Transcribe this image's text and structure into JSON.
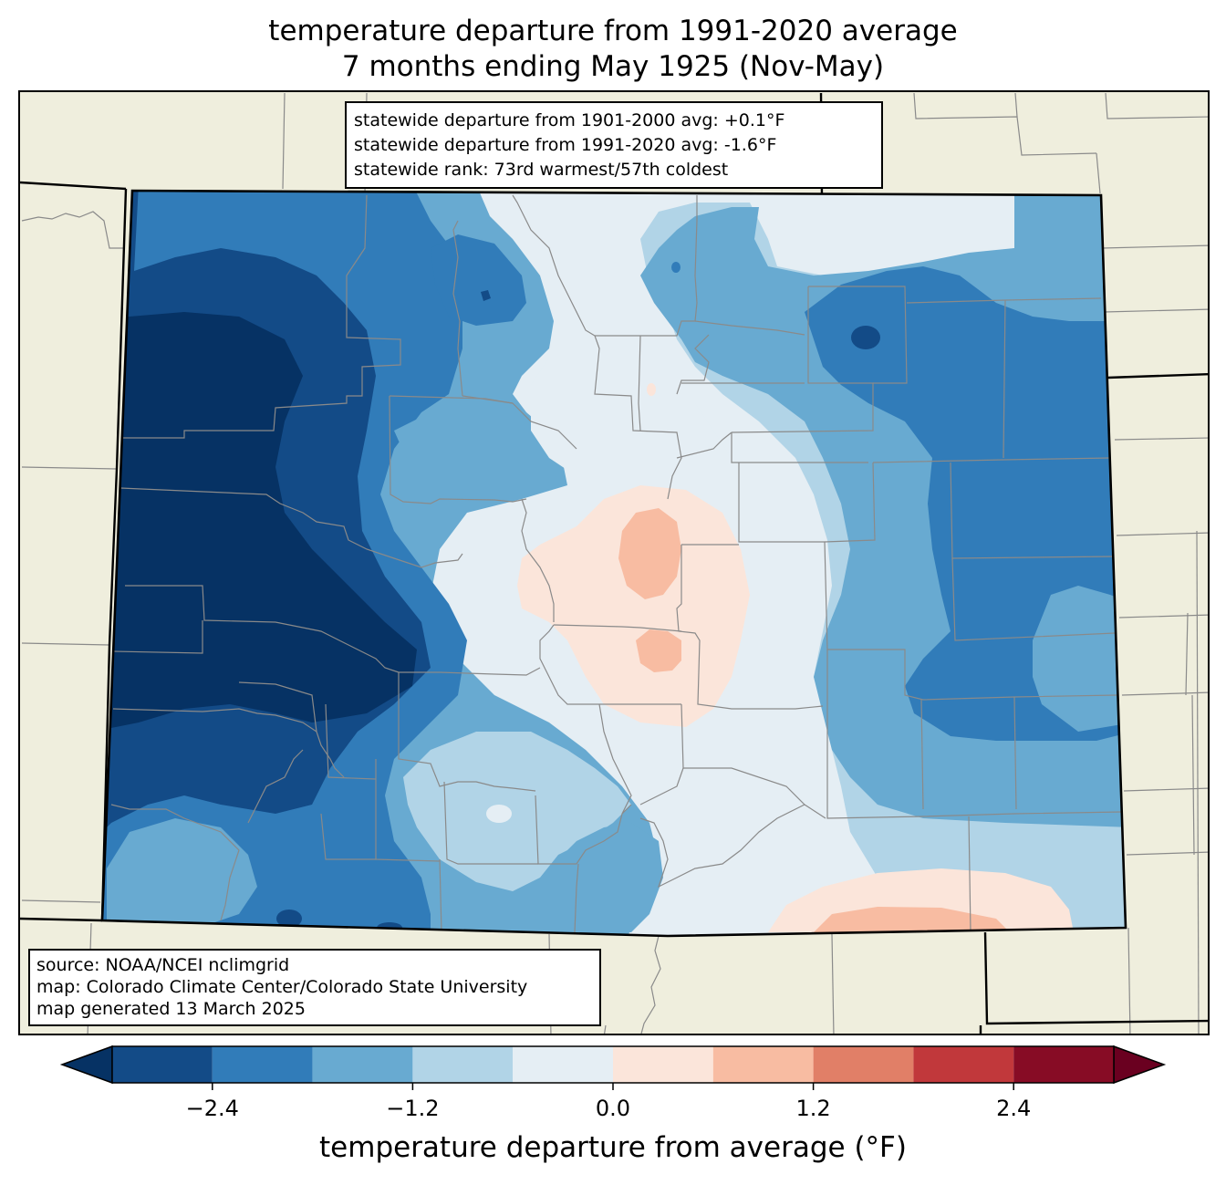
{
  "title": {
    "line1": "temperature departure from 1991-2020 average",
    "line2": "7 months ending May 1925 (Nov-May)"
  },
  "stats": {
    "line1": "statewide departure from 1901-2000 avg: +0.1°F",
    "line2": "statewide departure from 1991-2020 avg: -1.6°F",
    "line3": "statewide rank: 73rd warmest/57th coldest"
  },
  "source": {
    "line1": "source: NOAA/NCEI nclimgrid",
    "line2": "map: Colorado Climate Center/Colorado State University",
    "line3": "map generated 13 March 2025"
  },
  "colors": {
    "land_background": "#efeedd",
    "county_lines": "#8a8a8a",
    "state_lines": "#000000"
  },
  "colorbar": {
    "label": "temperature departure from average (°F)",
    "min": -3.0,
    "max": 3.0,
    "bins": [
      {
        "from": -3.0,
        "to": -2.4,
        "color": "#134b87"
      },
      {
        "from": -2.4,
        "to": -1.8,
        "color": "#317cb9"
      },
      {
        "from": -1.8,
        "to": -1.2,
        "color": "#68aad1"
      },
      {
        "from": -1.2,
        "to": -0.6,
        "color": "#b1d4e7"
      },
      {
        "from": -0.6,
        "to": 0.0,
        "color": "#e5eef4"
      },
      {
        "from": 0.0,
        "to": 0.6,
        "color": "#fbe5da"
      },
      {
        "from": 0.6,
        "to": 1.2,
        "color": "#f8bca2"
      },
      {
        "from": 1.2,
        "to": 1.8,
        "color": "#e17f67"
      },
      {
        "from": 1.8,
        "to": 2.4,
        "color": "#c1383b"
      },
      {
        "from": 2.4,
        "to": 3.0,
        "color": "#870c25"
      }
    ],
    "under_color": "#063264",
    "over_color": "#6a0020",
    "ticks": [
      {
        "value": -2.4,
        "label": "−2.4"
      },
      {
        "value": -1.2,
        "label": "−1.2"
      },
      {
        "value": 0.0,
        "label": "0.0"
      },
      {
        "value": 1.2,
        "label": "1.2"
      },
      {
        "value": 2.4,
        "label": "2.4"
      }
    ]
  }
}
